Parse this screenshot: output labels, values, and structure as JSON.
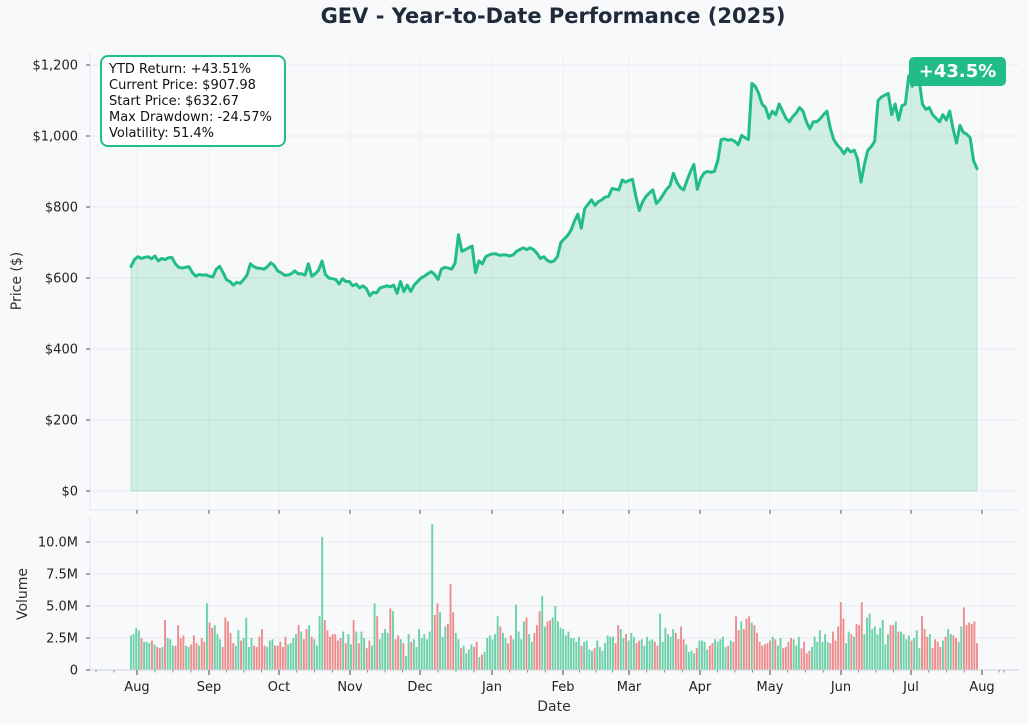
{
  "chart_data": [
    {
      "type": "area",
      "title": "GEV - Year-to-Date Performance (2025)",
      "ylabel": "Price ($)",
      "y_ticks": [
        "$0",
        "$200",
        "$400",
        "$600",
        "$800",
        "$1,000",
        "$1,200"
      ],
      "y_tick_values": [
        0,
        200,
        400,
        600,
        800,
        1000,
        1200
      ],
      "ylim": [
        0,
        1230
      ],
      "grid": true,
      "colors": {
        "line": "#22bd86",
        "fill": "#22bd86"
      },
      "stats": {
        "ytd_return": "YTD Return: +43.51%",
        "current_price": "Current Price: $907.98",
        "start_price": "Start Price: $632.67",
        "max_drawdown": "Max Drawdown: -24.57%",
        "volatility": "Volatility: 51.4%"
      },
      "badge": "+43.5%",
      "series": [
        {
          "values": [
            632,
            652,
            660,
            655,
            658,
            660,
            654,
            662,
            648,
            655,
            652,
            657,
            658,
            640,
            630,
            628,
            630,
            632,
            615,
            605,
            610,
            608,
            609,
            605,
            603,
            625,
            633,
            615,
            595,
            590,
            580,
            588,
            585,
            595,
            608,
            640,
            632,
            628,
            627,
            625,
            632,
            643,
            635,
            620,
            615,
            608,
            608,
            612,
            620,
            612,
            612,
            608,
            640,
            605,
            612,
            622,
            648,
            610,
            600,
            598,
            596,
            583,
            598,
            590,
            590,
            578,
            583,
            572,
            578,
            570,
            550,
            560,
            558,
            572,
            575,
            578,
            575,
            580,
            557,
            590,
            562,
            580,
            562,
            580,
            590,
            600,
            605,
            612,
            618,
            610,
            596,
            625,
            630,
            628,
            625,
            642,
            722,
            675,
            680,
            685,
            690,
            615,
            648,
            640,
            660,
            665,
            668,
            668,
            664,
            665,
            665,
            662,
            665,
            675,
            680,
            685,
            680,
            685,
            680,
            670,
            655,
            660,
            650,
            645,
            648,
            660,
            700,
            710,
            720,
            735,
            760,
            780,
            740,
            795,
            808,
            820,
            805,
            815,
            820,
            828,
            830,
            852,
            850,
            848,
            876,
            870,
            875,
            878,
            830,
            790,
            815,
            830,
            840,
            848,
            810,
            820,
            835,
            850,
            860,
            895,
            870,
            855,
            848,
            875,
            900,
            920,
            850,
            880,
            896,
            900,
            898,
            900,
            930,
            990,
            992,
            988,
            990,
            985,
            975,
            1002,
            995,
            990,
            1148,
            1140,
            1120,
            1090,
            1080,
            1050,
            1070,
            1060,
            1090,
            1070,
            1050,
            1040,
            1055,
            1065,
            1080,
            1070,
            1040,
            1020,
            1040,
            1040,
            1048,
            1060,
            1070,
            1022,
            990,
            975,
            965,
            950,
            965,
            955,
            960,
            935,
            870,
            920,
            960,
            970,
            985,
            1100,
            1110,
            1115,
            1120,
            1060,
            1090,
            1045,
            1085,
            1090,
            1170,
            1140,
            1150,
            1160,
            1090,
            1075,
            1080,
            1060,
            1050,
            1040,
            1060,
            1045,
            1070,
            1020,
            980,
            1030,
            1010,
            1005,
            995,
            930,
            908
          ]
        }
      ]
    },
    {
      "type": "bar",
      "ylabel": "Volume",
      "xlabel": "Date",
      "y_ticks": [
        "0",
        "2.5M",
        "5.0M",
        "7.5M",
        "10.0M"
      ],
      "y_tick_values": [
        0,
        2500000,
        5000000,
        7500000,
        10000000
      ],
      "ylim": [
        0,
        11800000
      ],
      "x_ticks": [
        "Aug",
        "Sep",
        "Oct",
        "Nov",
        "Dec",
        "Jan",
        "Feb",
        "Mar",
        "Apr",
        "May",
        "Jun",
        "Jul",
        "Aug"
      ],
      "colors": {
        "up": "#5ccc9f",
        "down": "#ec7f7f"
      },
      "series": [
        {
          "name": "volume",
          "values": [
            2700000,
            2800000,
            3300000,
            3100000,
            2500000,
            2200000,
            2200000,
            2100000,
            2300000,
            2000000,
            1800000,
            1700000,
            1800000,
            3900000,
            2500000,
            2400000,
            1900000,
            1900000,
            3500000,
            2500000,
            2700000,
            1900000,
            1800000,
            2000000,
            2700000,
            2100000,
            1900000,
            2500000,
            2200000,
            5200000,
            3700000,
            3300000,
            3500000,
            2800000,
            2400000,
            1800000,
            4100000,
            3800000,
            2900000,
            2100000,
            1900000,
            3100000,
            2300000,
            2500000,
            4100000,
            1800000,
            2500000,
            1900000,
            1800000,
            2600000,
            3200000,
            1900000,
            1800000,
            2300000,
            2400000,
            1900000,
            1900000,
            2200000,
            1800000,
            2600000,
            2000000,
            2100000,
            2500000,
            2800000,
            3500000,
            3000000,
            2400000,
            3200000,
            3500000,
            2600000,
            2400000,
            1900000,
            4200000,
            10400000,
            3900000,
            3100000,
            2600000,
            2800000,
            2800000,
            2300000,
            2500000,
            3000000,
            2100000,
            2800000,
            2000000,
            3900000,
            3000000,
            2100000,
            3000000,
            2500000,
            1700000,
            2300000,
            1900000,
            5200000,
            4200000,
            2400000,
            2900000,
            3200000,
            2900000,
            4800000,
            4600000,
            2400000,
            2700000,
            2400000,
            2100000,
            1100000,
            2800000,
            2200000,
            2400000,
            1800000,
            3200000,
            2500000,
            2800000,
            2400000,
            3000000,
            11400000,
            4300000,
            5200000,
            4500000,
            2600000,
            3400000,
            3600000,
            6700000,
            4500000,
            2900000,
            2400000,
            1700000,
            1900000,
            1300000,
            1600000,
            2000000,
            1800000,
            2200000,
            1000000,
            1200000,
            1400000,
            2500000,
            2700000,
            2400000,
            2800000,
            4200000,
            3400000,
            2900000,
            2500000,
            2100000,
            2700000,
            2400000,
            5100000,
            3000000,
            2400000,
            3800000,
            4100000,
            2800000,
            2200000,
            2900000,
            3500000,
            4600000,
            5800000,
            3400000,
            3800000,
            3900000,
            4100000,
            5000000,
            3800000,
            3300000,
            3200000,
            2700000,
            3000000,
            2500000,
            2500000,
            2200000,
            2600000,
            1900000,
            2200000,
            2300000,
            1600000,
            1500000,
            1700000,
            2300000,
            1800000,
            1500000,
            2100000,
            2700000,
            2600000,
            2600000,
            2100000,
            3500000,
            3200000,
            2500000,
            2800000,
            2300000,
            2900000,
            2600000,
            2100000,
            2300000,
            2400000,
            1900000,
            2600000,
            2300000,
            2400000,
            2200000,
            1900000,
            4400000,
            2200000,
            3300000,
            2800000,
            2600000,
            3200000,
            2900000,
            2400000,
            3400000,
            2400000,
            2000000,
            1400000,
            1500000,
            1300000,
            1700000,
            2300000,
            2300000,
            2200000,
            1600000,
            1900000,
            2100000,
            2400000,
            2200000,
            2400000,
            2600000,
            1800000,
            1900000,
            2300000,
            2200000,
            4200000,
            3100000,
            3800000,
            3200000,
            4000000,
            4200000,
            3700000,
            3500000,
            2900000,
            2200000,
            1900000,
            2000000,
            2100000,
            2300000,
            2600000,
            2400000,
            1900000,
            2500000,
            1700000,
            1800000,
            2200000,
            2500000,
            2400000,
            1900000,
            2600000,
            1700000,
            2200000,
            1300000,
            1500000,
            1800000,
            2600000,
            2200000,
            3100000,
            2200000,
            2800000,
            2200000,
            2100000,
            3000000,
            2300000,
            3400000,
            5300000,
            4000000,
            2100000,
            3000000,
            2800000,
            2600000,
            3600000,
            3500000,
            5300000,
            2800000,
            4100000,
            4400000,
            3200000,
            3400000,
            2800000,
            3300000,
            3900000,
            2000000,
            2800000,
            3500000,
            3500000,
            3800000,
            3000000,
            3000000,
            2800000,
            2400000,
            2700000,
            2300000,
            2500000,
            3100000,
            1700000,
            4200000,
            3200000,
            2600000,
            2800000,
            1700000,
            2400000,
            2200000,
            1800000,
            2300000,
            2600000,
            3200000,
            2800000,
            2700000,
            2500000,
            2200000,
            3400000,
            4900000,
            3500000,
            3700000,
            3600000,
            3800000,
            2100000
          ]
        }
      ]
    }
  ]
}
